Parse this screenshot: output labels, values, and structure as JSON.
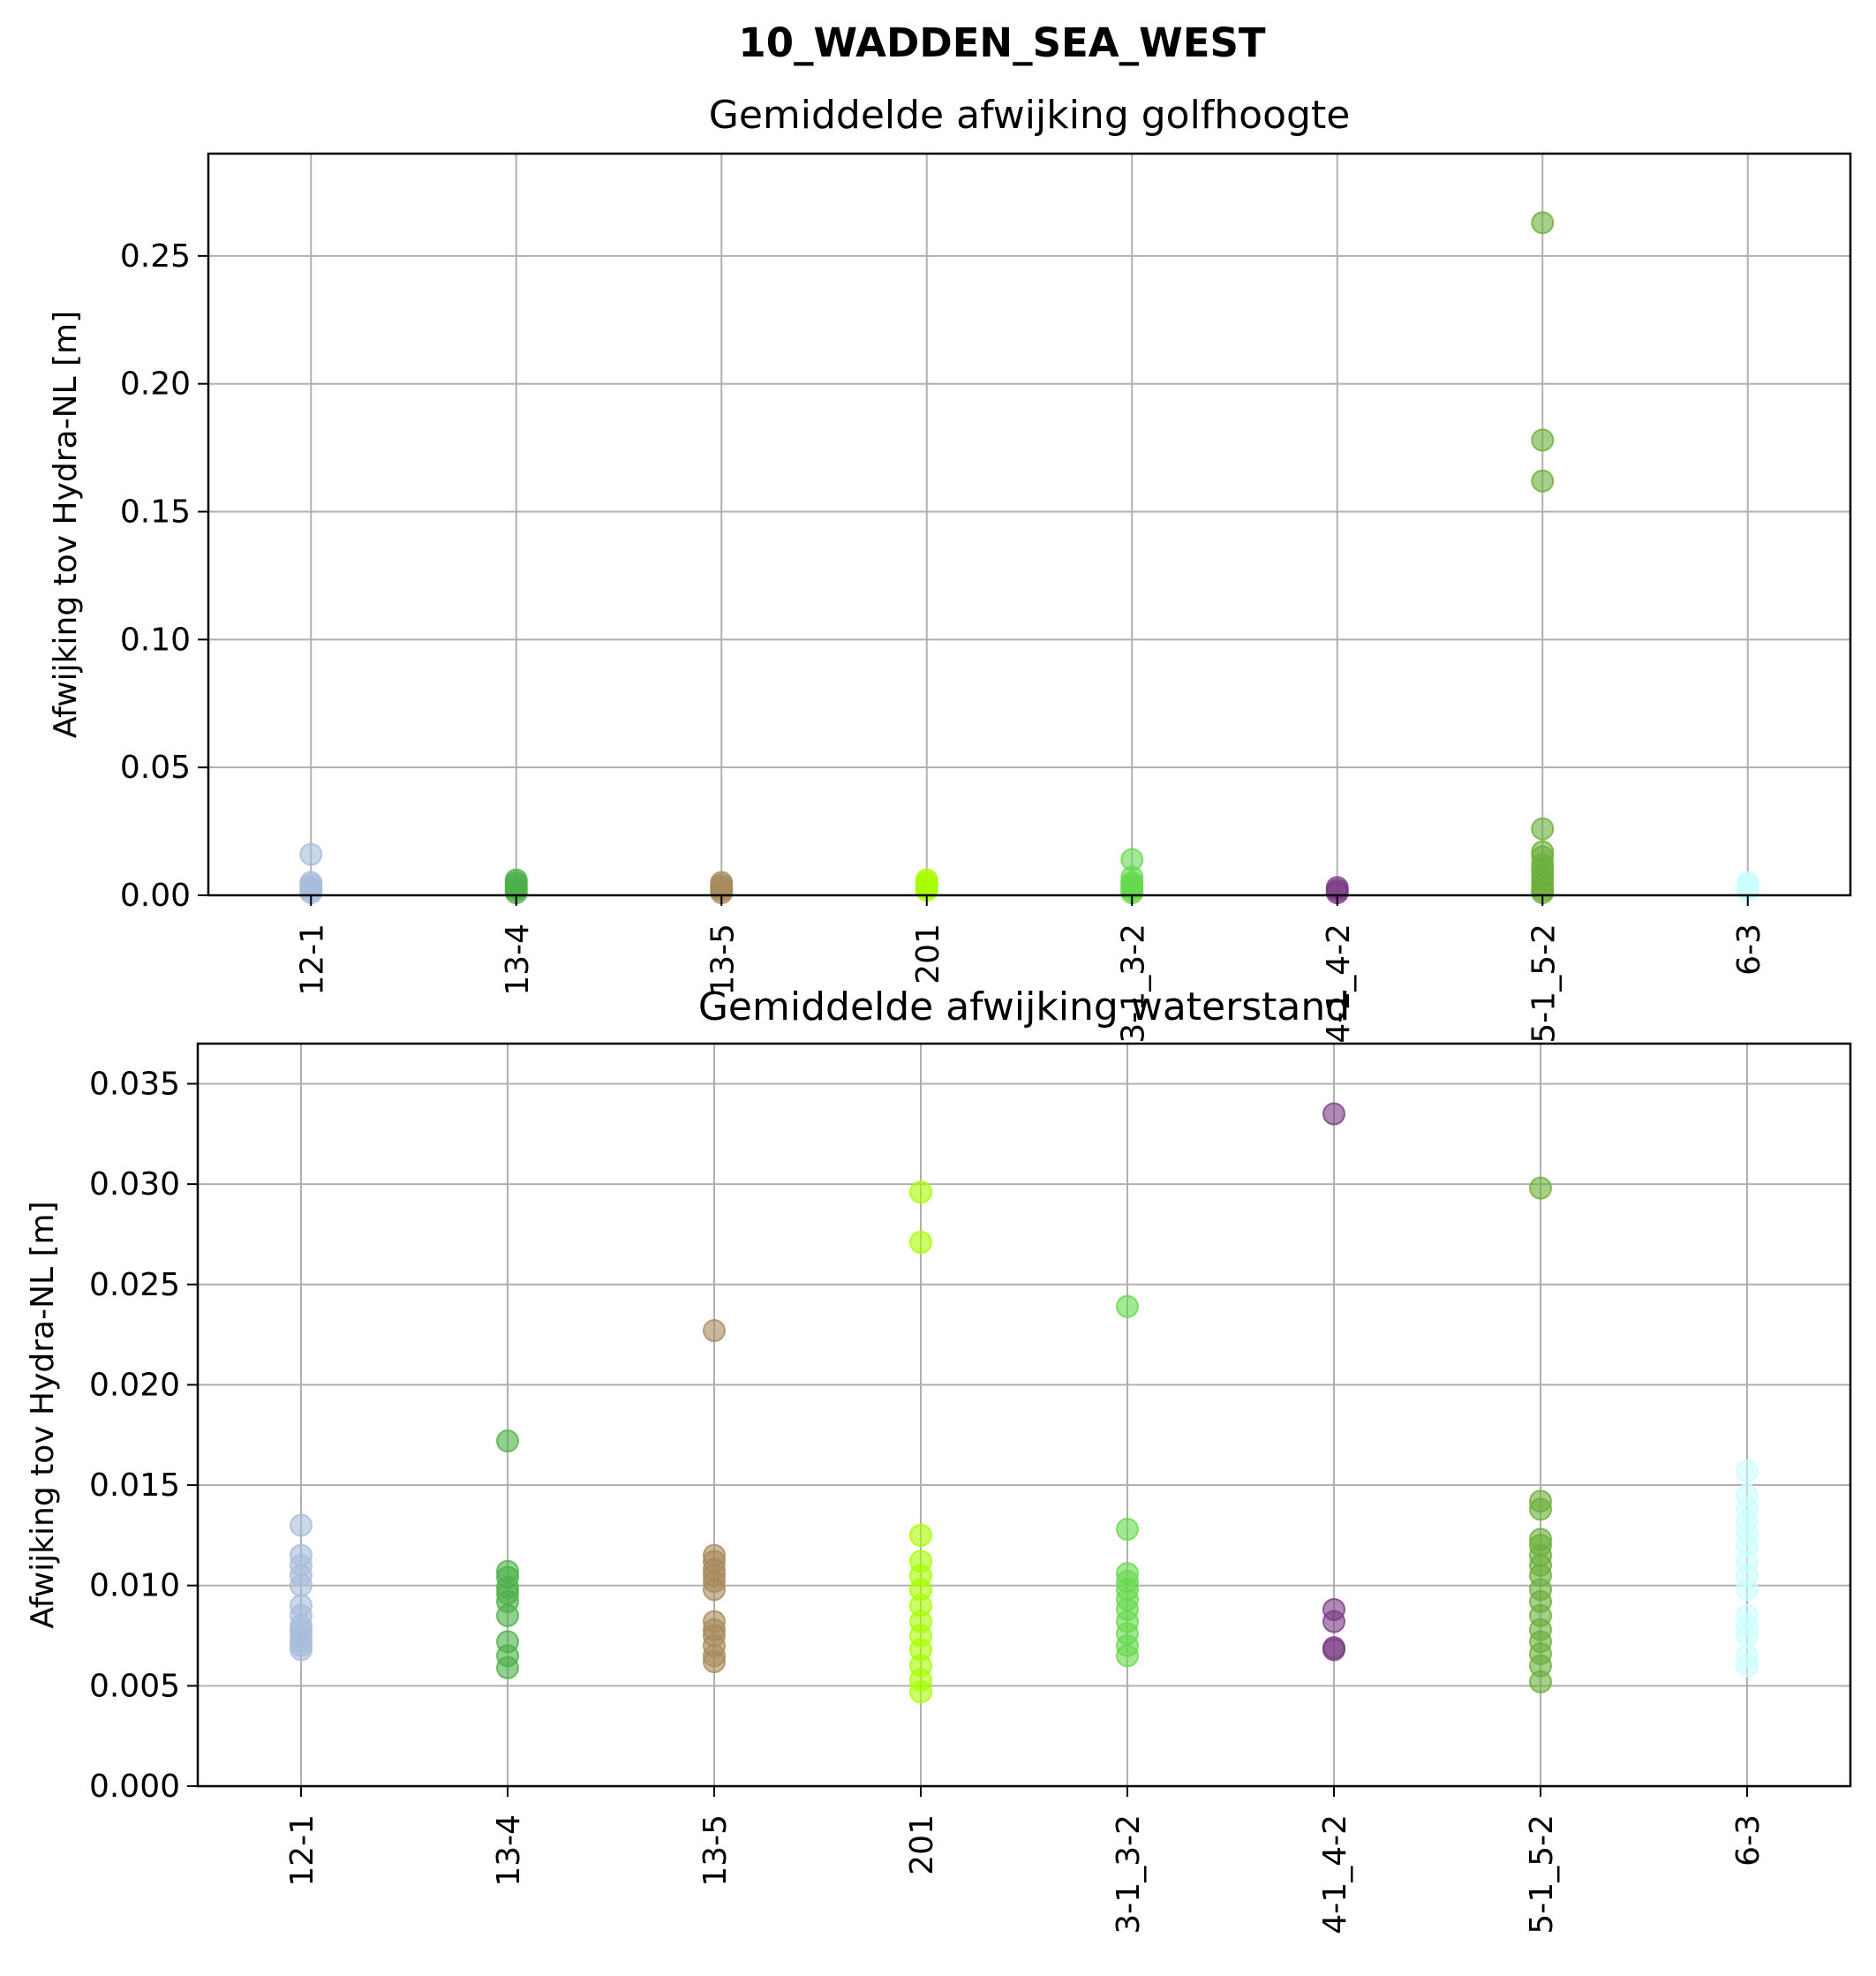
{
  "figure": {
    "suptitle": "10_WADDEN_SEA_WEST",
    "grid_color": "#b0b0b0"
  },
  "chart_data": [
    {
      "type": "scatter",
      "title": "Gemiddelde afwijking golfhoogte",
      "xlabel": "",
      "ylabel": "Afwijking tov Hydra-NL [m]",
      "categories": [
        "12-1",
        "13-4",
        "13-5",
        "201",
        "3-1_3-2",
        "4-1_4-2",
        "5-1_5-2",
        "6-3"
      ],
      "xlim": [
        -0.5,
        7.5
      ],
      "ylim": [
        0,
        0.29
      ],
      "yticks": [
        0.0,
        0.05,
        0.1,
        0.15,
        0.2,
        0.25
      ],
      "ytick_labels": [
        "0.00",
        "0.05",
        "0.10",
        "0.15",
        "0.20",
        "0.25"
      ],
      "grid": true,
      "colors": [
        "#a6bddb",
        "#4daf4a",
        "#a68a5b",
        "#a6ff00",
        "#66d94d",
        "#7b3b86",
        "#6aaf3a",
        "#ccffff"
      ],
      "points": [
        [
          0.016,
          0.005,
          0.004,
          0.003,
          0.002,
          0.001
        ],
        [
          0.006,
          0.005,
          0.004,
          0.003,
          0.002,
          0.001
        ],
        [
          0.005,
          0.004,
          0.003,
          0.002,
          0.001
        ],
        [
          0.006,
          0.005,
          0.004,
          0.003,
          0.002
        ],
        [
          0.014,
          0.007,
          0.005,
          0.004,
          0.003,
          0.002,
          0.001
        ],
        [
          0.003,
          0.002,
          0.001
        ],
        [
          0.263,
          0.178,
          0.162,
          0.026,
          0.017,
          0.015,
          0.012,
          0.01,
          0.008,
          0.006,
          0.004,
          0.002,
          0.001
        ],
        [
          0.005,
          0.004,
          0.003,
          0.002
        ]
      ]
    },
    {
      "type": "scatter",
      "title": "Gemiddelde afwijking waterstand",
      "xlabel": "",
      "ylabel": "Afwijking tov Hydra-NL [m]",
      "categories": [
        "12-1",
        "13-4",
        "13-5",
        "201",
        "3-1_3-2",
        "4-1_4-2",
        "5-1_5-2",
        "6-3"
      ],
      "xlim": [
        -0.5,
        7.5
      ],
      "ylim": [
        0,
        0.037
      ],
      "yticks": [
        0.0,
        0.005,
        0.01,
        0.015,
        0.02,
        0.025,
        0.03,
        0.035
      ],
      "ytick_labels": [
        "0.000",
        "0.005",
        "0.010",
        "0.015",
        "0.020",
        "0.025",
        "0.030",
        "0.035"
      ],
      "grid": true,
      "colors": [
        "#a6bddb",
        "#4daf4a",
        "#a68a5b",
        "#a6ff00",
        "#66d94d",
        "#7b3b86",
        "#6aaf3a",
        "#ccffff"
      ],
      "points": [
        [
          0.013,
          0.0115,
          0.011,
          0.0105,
          0.01,
          0.009,
          0.0085,
          0.008,
          0.0078,
          0.0075,
          0.0072,
          0.007,
          0.0068
        ],
        [
          0.0172,
          0.0107,
          0.0104,
          0.0099,
          0.0096,
          0.0092,
          0.0085,
          0.0072,
          0.0065,
          0.0059
        ],
        [
          0.0227,
          0.0115,
          0.0112,
          0.0108,
          0.0105,
          0.0102,
          0.0098,
          0.0082,
          0.0078,
          0.0075,
          0.007,
          0.0065,
          0.0062
        ],
        [
          0.0296,
          0.0271,
          0.0125,
          0.0112,
          0.0105,
          0.0098,
          0.009,
          0.0082,
          0.0075,
          0.0068,
          0.006,
          0.0053,
          0.0047
        ],
        [
          0.0239,
          0.0128,
          0.0106,
          0.0102,
          0.0098,
          0.0093,
          0.0088,
          0.0082,
          0.0076,
          0.007,
          0.0065
        ],
        [
          0.0335,
          0.0088,
          0.0082,
          0.0069,
          0.0068
        ],
        [
          0.0298,
          0.0142,
          0.0138,
          0.0123,
          0.012,
          0.0115,
          0.011,
          0.0105,
          0.0098,
          0.0092,
          0.0085,
          0.0078,
          0.0072,
          0.0066,
          0.006,
          0.0052
        ],
        [
          0.0157,
          0.0145,
          0.0138,
          0.0132,
          0.0126,
          0.012,
          0.0112,
          0.0105,
          0.0098,
          0.0085,
          0.008,
          0.0075,
          0.0065,
          0.006
        ]
      ]
    }
  ]
}
